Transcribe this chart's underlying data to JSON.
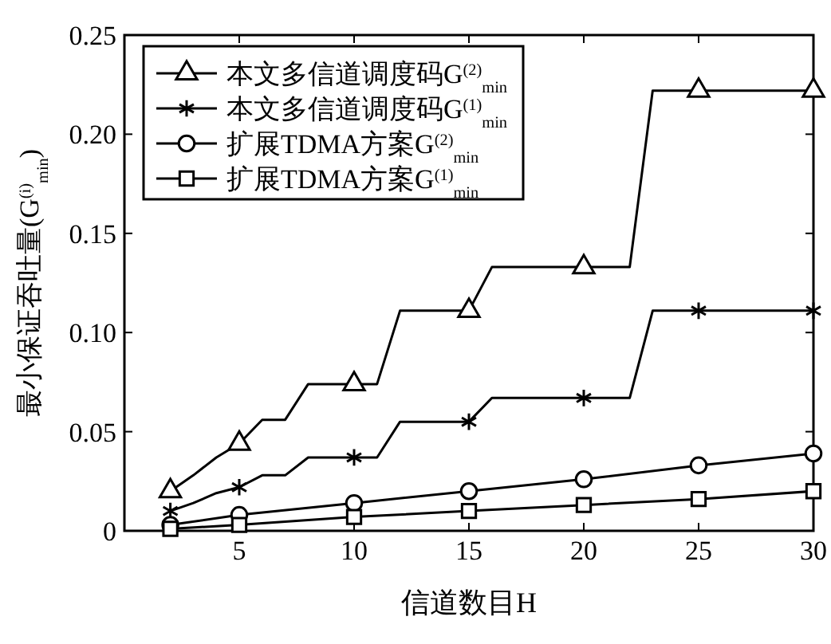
{
  "chart_data": {
    "type": "line",
    "xlabel": "信道数目H",
    "ylabel": "最小保证吞吐量(G$^{(i)}$$_{min}$)",
    "xlim": [
      0,
      30
    ],
    "xticks": [
      5,
      10,
      15,
      20,
      25,
      30
    ],
    "ylim": [
      0,
      0.25
    ],
    "yticks": [
      0,
      {
        "value": 0.05,
        "label": "0.05"
      },
      {
        "value": 0.1,
        "label": "0.10"
      },
      {
        "value": 0.15,
        "label": "0.15"
      },
      {
        "value": 0.2,
        "label": "0.20"
      },
      {
        "value": 0.25,
        "label": "0.25"
      }
    ],
    "grid": false,
    "legend": "top left",
    "line_style": "solid",
    "series": [
      {
        "name": "本文多信道调度码G$^{(2)}$$_{min}$",
        "color": "#000000",
        "x": [
          2,
          3,
          4,
          5,
          6,
          7,
          8,
          9,
          10,
          11,
          12,
          13,
          14,
          15,
          16,
          17,
          18,
          19,
          20,
          21,
          22,
          23,
          24,
          25,
          26,
          27,
          28,
          29,
          30
        ],
        "values": [
          0.02,
          0.028,
          0.037,
          0.044,
          0.056,
          0.056,
          0.074,
          0.074,
          0.074,
          0.074,
          0.111,
          0.111,
          0.111,
          0.111,
          0.133,
          0.133,
          0.133,
          0.133,
          0.133,
          0.133,
          0.133,
          0.222,
          0.222,
          0.222,
          0.222,
          0.222,
          0.222,
          0.222,
          0.222
        ]
      },
      {
        "type": "scatter",
        "color": "#000000",
        "marker": "triangle",
        "x": [
          2,
          5,
          10,
          15,
          20,
          25,
          30
        ],
        "values": [
          0.02,
          0.044,
          0.074,
          0.111,
          0.133,
          0.222,
          0.222
        ]
      },
      {
        "name": "本文多信道调度码G$^{(1)}$$_{min}$",
        "color": "#000000",
        "x": [
          2,
          3,
          4,
          5,
          6,
          7,
          8,
          9,
          10,
          11,
          12,
          13,
          14,
          15,
          16,
          17,
          18,
          19,
          20,
          21,
          22,
          23,
          24,
          25,
          26,
          27,
          28,
          29,
          30
        ],
        "values": [
          0.01,
          0.014,
          0.019,
          0.022,
          0.028,
          0.028,
          0.037,
          0.037,
          0.037,
          0.037,
          0.055,
          0.055,
          0.055,
          0.055,
          0.067,
          0.067,
          0.067,
          0.067,
          0.067,
          0.067,
          0.067,
          0.111,
          0.111,
          0.111,
          0.111,
          0.111,
          0.111,
          0.111,
          0.111
        ]
      },
      {
        "type": "scatter",
        "color": "#000000",
        "marker": "cross",
        "x": [
          2,
          5,
          10,
          15,
          20,
          25,
          30
        ],
        "values": [
          0.01,
          0.022,
          0.037,
          0.055,
          0.067,
          0.111,
          0.111
        ]
      },
      {
        "name": "扩展TDMA方案G$^{(2)}$$_{min}$",
        "color": "#000000",
        "marker": "circle",
        "x": [
          2,
          5,
          10,
          15,
          20,
          25,
          30
        ],
        "values": [
          0.003,
          0.008,
          0.014,
          0.02,
          0.026,
          0.033,
          0.039
        ]
      },
      {
        "name": "扩展TDMA方案G$^{(1)}$$_{min}$",
        "color": "#000000",
        "marker": "square",
        "x": [
          2,
          5,
          10,
          15,
          20,
          25,
          30
        ],
        "values": [
          0.001,
          0.003,
          0.007,
          0.01,
          0.013,
          0.016,
          0.02
        ]
      }
    ]
  }
}
